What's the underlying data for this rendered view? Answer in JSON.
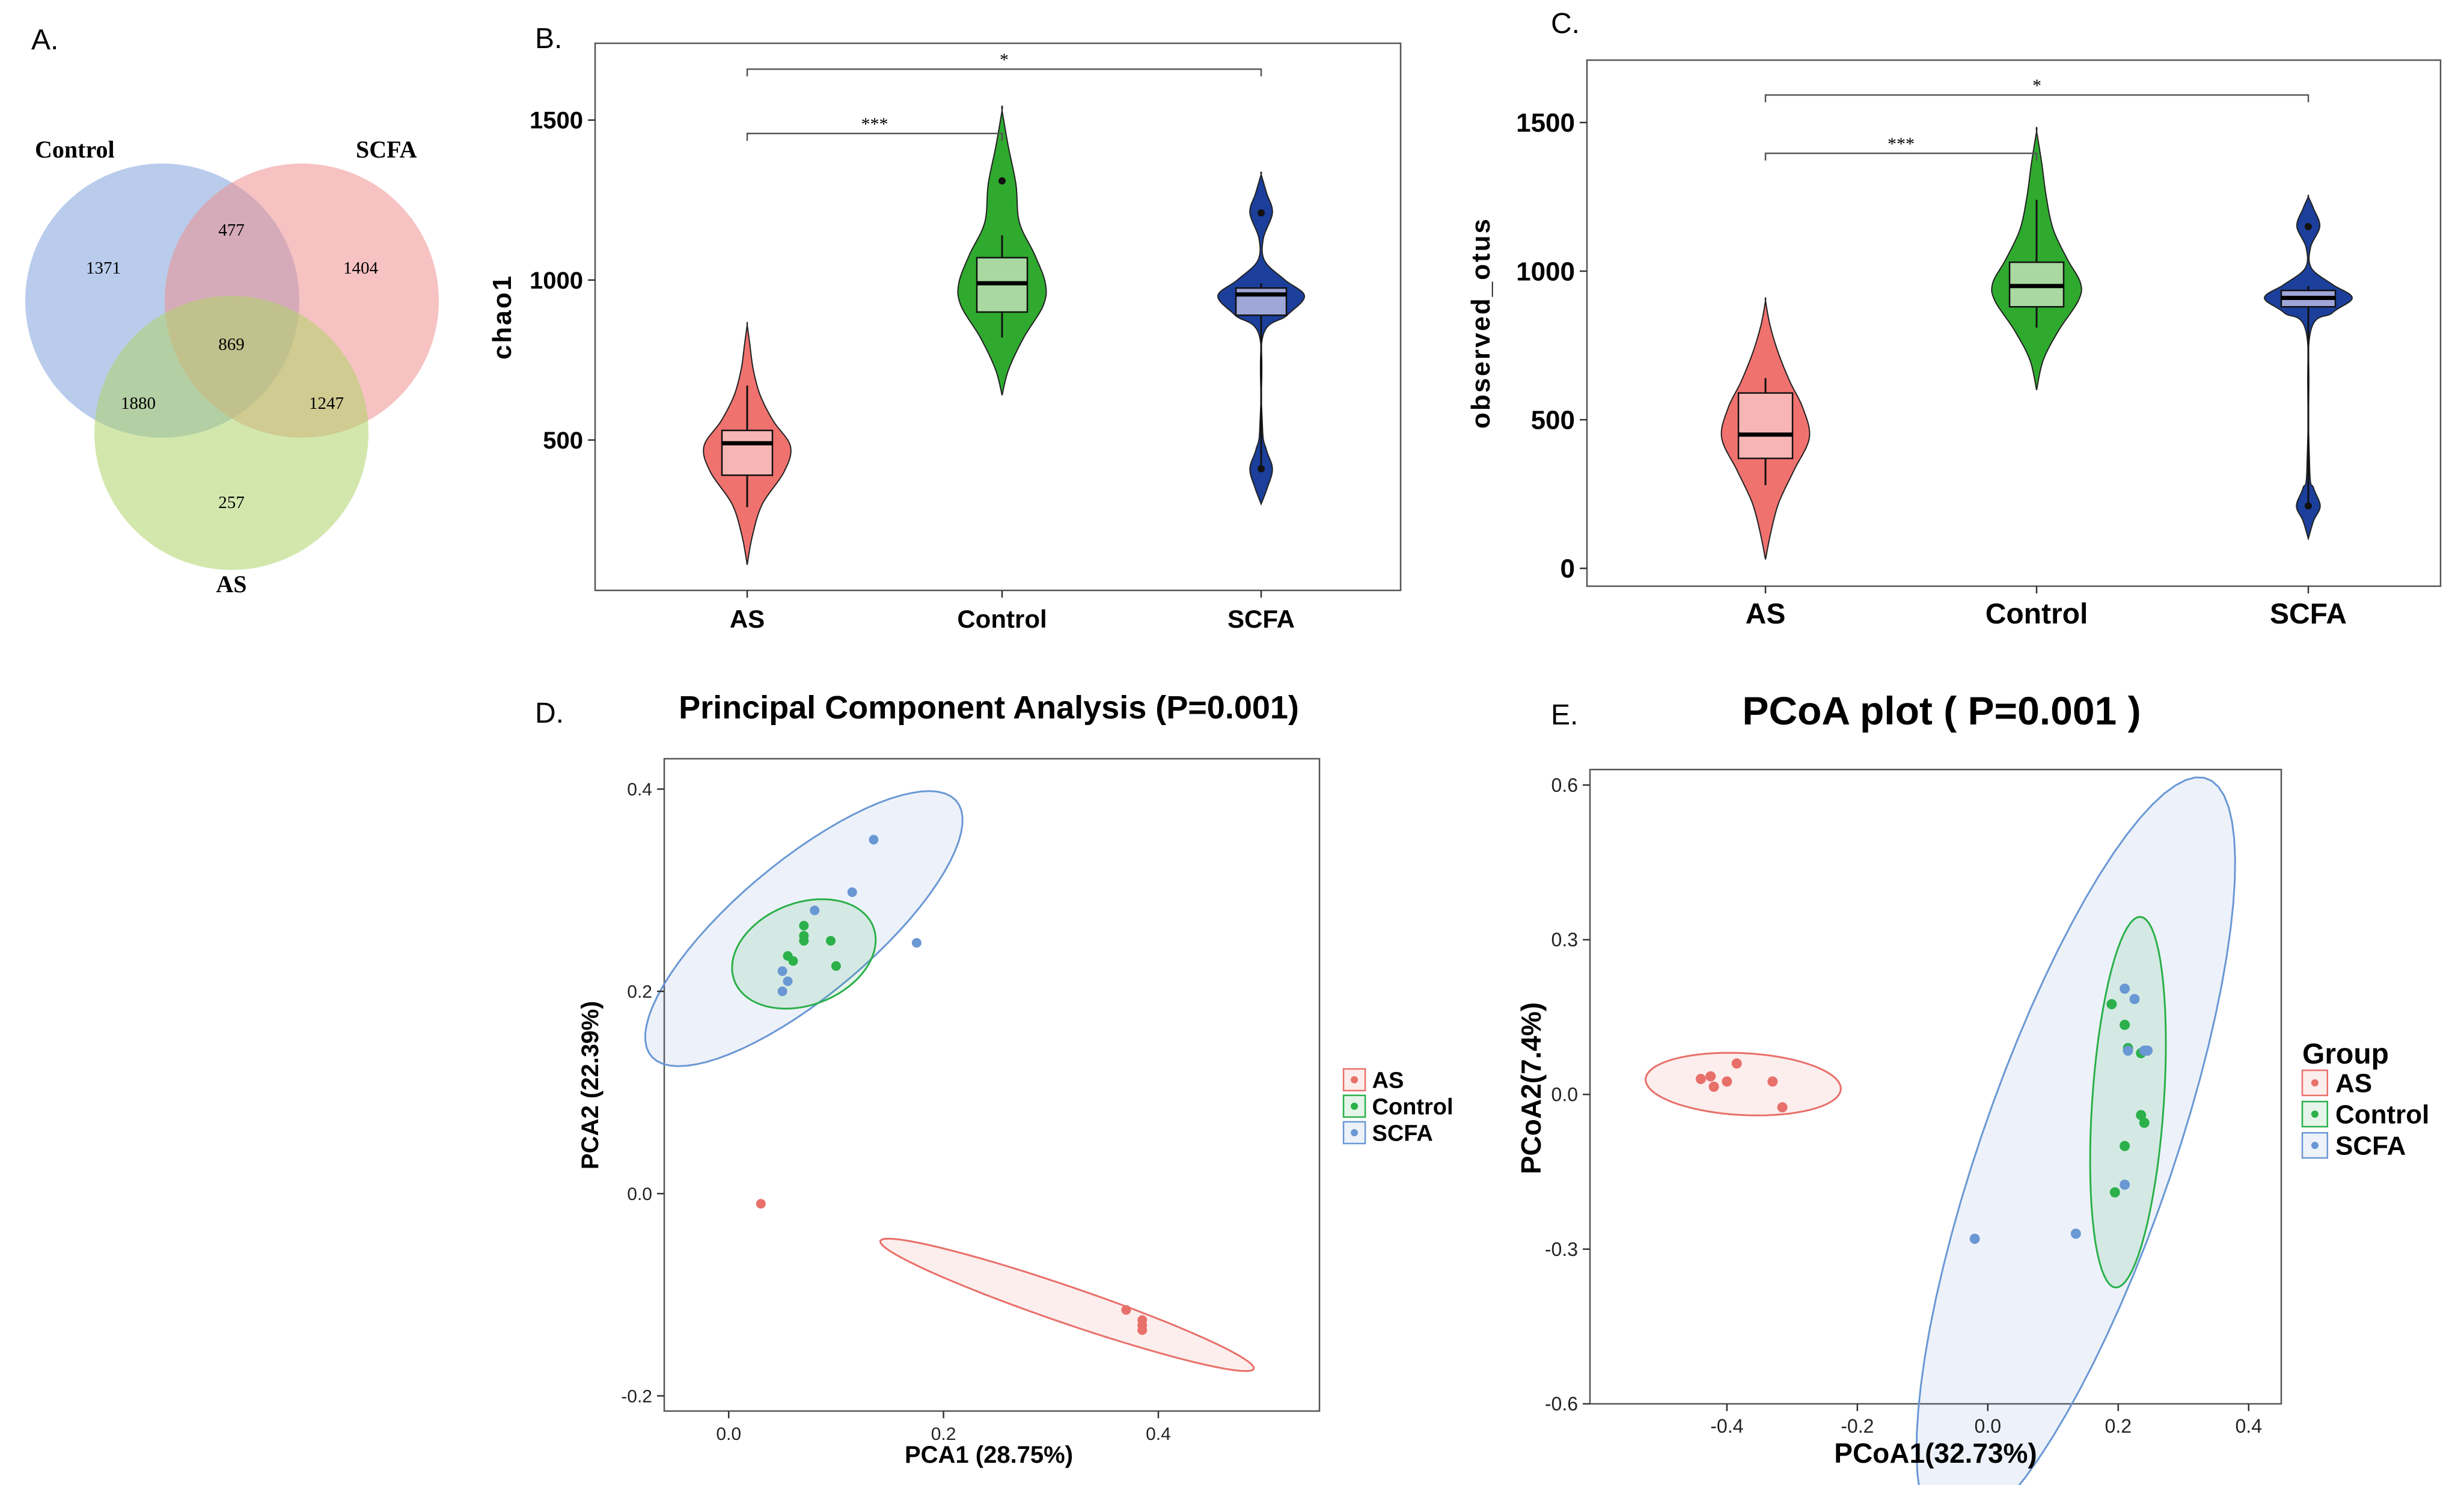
{
  "figure": {
    "panel_labels": [
      "A.",
      "B.",
      "C.",
      "D.",
      "E."
    ]
  },
  "colors": {
    "as": "#F0726F",
    "control": "#2FAA2F",
    "scfa": "#1B3F9B",
    "as_light": "#F7B6B4",
    "control_light": "#A9D9A0",
    "scfa_light": "#9FA6D8",
    "pc_as": "#E8706A",
    "pc_control": "#2BB04A",
    "pc_scfa": "#6A98D4",
    "venn_control": "#7FA3DC",
    "venn_scfa": "#EE9090",
    "venn_as": "#AFD36A"
  },
  "chart_data": [
    {
      "type": "venn",
      "panel": "A.",
      "sets": [
        "Control",
        "SCFA",
        "AS"
      ],
      "regions": [
        {
          "sets": [
            "Control"
          ],
          "value": "1371"
        },
        {
          "sets": [
            "SCFA"
          ],
          "value": "1404"
        },
        {
          "sets": [
            "AS"
          ],
          "value": "257"
        },
        {
          "sets": [
            "Control",
            "SCFA"
          ],
          "value": "477"
        },
        {
          "sets": [
            "Control",
            "AS"
          ],
          "value": "1880"
        },
        {
          "sets": [
            "SCFA",
            "AS"
          ],
          "value": "1247"
        },
        {
          "sets": [
            "Control",
            "SCFA",
            "AS"
          ],
          "value": "869"
        }
      ]
    },
    {
      "type": "violin",
      "panel": "B.",
      "ylabel": "chao1",
      "xlabel": "",
      "yticks": [
        500,
        1000,
        1500
      ],
      "ylim": [
        30,
        1740
      ],
      "categories": [
        "AS",
        "Control",
        "SCFA"
      ],
      "groups": [
        {
          "name": "AS",
          "min": 110,
          "max": 860,
          "q1": 390,
          "median": 490,
          "q3": 530,
          "whisker_low": 290,
          "whisker_high": 670,
          "outliers": [],
          "profile": [
            [
              110,
              0.0
            ],
            [
              200,
              0.12
            ],
            [
              300,
              0.35
            ],
            [
              400,
              0.85
            ],
            [
              480,
              1.0
            ],
            [
              560,
              0.6
            ],
            [
              640,
              0.3
            ],
            [
              720,
              0.14
            ],
            [
              800,
              0.06
            ],
            [
              860,
              0.0
            ]
          ]
        },
        {
          "name": "Control",
          "min": 640,
          "max": 1530,
          "q1": 900,
          "median": 990,
          "q3": 1070,
          "whisker_low": 820,
          "whisker_high": 1140,
          "outliers": [
            1310
          ],
          "profile": [
            [
              640,
              0.0
            ],
            [
              720,
              0.15
            ],
            [
              820,
              0.5
            ],
            [
              920,
              0.95
            ],
            [
              990,
              1.0
            ],
            [
              1080,
              0.75
            ],
            [
              1180,
              0.4
            ],
            [
              1300,
              0.32
            ],
            [
              1420,
              0.14
            ],
            [
              1530,
              0.0
            ]
          ]
        },
        {
          "name": "SCFA",
          "min": 300,
          "max": 1330,
          "q1": 890,
          "median": 955,
          "q3": 975,
          "whisker_low": 410,
          "whisker_high": 990,
          "outliers": [
            410,
            1210
          ],
          "profile": [
            [
              300,
              0.0
            ],
            [
              350,
              0.14
            ],
            [
              410,
              0.26
            ],
            [
              470,
              0.12
            ],
            [
              540,
              0.03
            ],
            [
              820,
              0.03
            ],
            [
              890,
              0.6
            ],
            [
              950,
              1.0
            ],
            [
              1000,
              0.55
            ],
            [
              1060,
              0.08
            ],
            [
              1130,
              0.05
            ],
            [
              1210,
              0.26
            ],
            [
              1270,
              0.13
            ],
            [
              1330,
              0.0
            ]
          ]
        }
      ],
      "significance": [
        {
          "from": "AS",
          "to": "Control",
          "label": "***"
        },
        {
          "from": "AS",
          "to": "SCFA",
          "label": "*"
        }
      ]
    },
    {
      "type": "violin",
      "panel": "C.",
      "ylabel": "observed_otus",
      "xlabel": "",
      "yticks": [
        0,
        500,
        1000,
        1500
      ],
      "ylim": [
        -60,
        1710
      ],
      "categories": [
        "AS",
        "Control",
        "SCFA"
      ],
      "groups": [
        {
          "name": "AS",
          "min": 30,
          "max": 900,
          "q1": 370,
          "median": 450,
          "q3": 590,
          "whisker_low": 280,
          "whisker_high": 640,
          "outliers": [],
          "profile": [
            [
              30,
              0.0
            ],
            [
              120,
              0.12
            ],
            [
              220,
              0.3
            ],
            [
              330,
              0.65
            ],
            [
              440,
              1.0
            ],
            [
              540,
              0.85
            ],
            [
              630,
              0.55
            ],
            [
              730,
              0.28
            ],
            [
              820,
              0.1
            ],
            [
              900,
              0.0
            ]
          ]
        },
        {
          "name": "Control",
          "min": 600,
          "max": 1470,
          "q1": 880,
          "median": 950,
          "q3": 1030,
          "whisker_low": 810,
          "whisker_high": 1240,
          "outliers": [],
          "profile": [
            [
              600,
              0.0
            ],
            [
              700,
              0.15
            ],
            [
              800,
              0.5
            ],
            [
              900,
              0.95
            ],
            [
              960,
              1.0
            ],
            [
              1040,
              0.7
            ],
            [
              1140,
              0.38
            ],
            [
              1250,
              0.22
            ],
            [
              1360,
              0.12
            ],
            [
              1470,
              0.0
            ]
          ]
        },
        {
          "name": "SCFA",
          "min": 100,
          "max": 1250,
          "q1": 880,
          "median": 910,
          "q3": 935,
          "whisker_low": 210,
          "whisker_high": 950,
          "outliers": [
            210,
            1150
          ],
          "profile": [
            [
              100,
              0.0
            ],
            [
              160,
              0.12
            ],
            [
              210,
              0.27
            ],
            [
              270,
              0.12
            ],
            [
              340,
              0.03
            ],
            [
              780,
              0.03
            ],
            [
              860,
              0.55
            ],
            [
              910,
              1.0
            ],
            [
              955,
              0.55
            ],
            [
              1010,
              0.07
            ],
            [
              1080,
              0.05
            ],
            [
              1150,
              0.26
            ],
            [
              1210,
              0.12
            ],
            [
              1250,
              0.0
            ]
          ]
        }
      ],
      "significance": [
        {
          "from": "AS",
          "to": "Control",
          "label": "***"
        },
        {
          "from": "AS",
          "to": "SCFA",
          "label": "*"
        }
      ]
    },
    {
      "type": "scatter",
      "panel": "D.",
      "title": "Principal Component Analysis (P=0.001)",
      "xlabel": "PCA1 (28.75%)",
      "ylabel": "PCA2 (22.39%)",
      "xlim": [
        -0.06,
        0.55
      ],
      "ylim": [
        -0.215,
        0.43
      ],
      "xticks": [
        0.0,
        0.2,
        0.4
      ],
      "yticks": [
        -0.2,
        0.0,
        0.2,
        0.4
      ],
      "legend": {
        "title": "",
        "entries": [
          "AS",
          "Control",
          "SCFA"
        ],
        "placement": "right"
      },
      "series": [
        {
          "name": "AS",
          "points": [
            [
              0.03,
              -0.01
            ],
            [
              0.37,
              -0.115
            ],
            [
              0.385,
              -0.125
            ],
            [
              0.385,
              -0.13
            ],
            [
              0.385,
              -0.135
            ]
          ],
          "ellipse": {
            "center": [
              0.315,
              -0.11
            ],
            "axes": [
              0.185,
              0.018
            ],
            "angle_deg": -20.0
          }
        },
        {
          "name": "Control",
          "points": [
            [
              0.07,
              0.265
            ],
            [
              0.07,
              0.255
            ],
            [
              0.095,
              0.25
            ],
            [
              0.055,
              0.235
            ],
            [
              0.06,
              0.23
            ],
            [
              0.1,
              0.225
            ],
            [
              0.07,
              0.25
            ]
          ],
          "ellipse": {
            "center": [
              0.07,
              0.237
            ],
            "axes": [
              0.07,
              0.05
            ],
            "angle_deg": 25.0
          }
        },
        {
          "name": "SCFA",
          "points": [
            [
              0.135,
              0.35
            ],
            [
              0.115,
              0.298
            ],
            [
              0.08,
              0.28
            ],
            [
              0.175,
              0.248
            ],
            [
              0.05,
              0.22
            ],
            [
              0.055,
              0.21
            ],
            [
              0.05,
              0.2
            ]
          ],
          "ellipse": {
            "center": [
              0.07,
              0.262
            ],
            "axes": [
              0.19,
              0.065
            ],
            "angle_deg": 42.0
          }
        }
      ]
    },
    {
      "type": "scatter",
      "panel": "E.",
      "title": "PCoA plot ( P=0.001 )",
      "xlabel": "PCoA1(32.73%)",
      "ylabel": "PCoA2(7.4%)",
      "xlim": [
        -0.61,
        0.45
      ],
      "ylim": [
        -0.6,
        0.63
      ],
      "xticks": [
        -0.4,
        -0.2,
        0.0,
        0.2,
        0.4
      ],
      "yticks": [
        -0.6,
        -0.3,
        0.0,
        0.3,
        0.6
      ],
      "legend": {
        "title": "Group",
        "entries": [
          "AS",
          "Control",
          "SCFA"
        ],
        "placement": "right"
      },
      "series": [
        {
          "name": "AS",
          "points": [
            [
              -0.44,
              0.03
            ],
            [
              -0.425,
              0.035
            ],
            [
              -0.42,
              0.015
            ],
            [
              -0.4,
              0.025
            ],
            [
              -0.385,
              0.06
            ],
            [
              -0.33,
              0.025
            ],
            [
              -0.315,
              -0.025
            ]
          ],
          "ellipse": {
            "center": [
              -0.375,
              0.02
            ],
            "axes": [
              0.15,
              0.06
            ],
            "angle_deg": -4.0
          }
        },
        {
          "name": "Control",
          "points": [
            [
              0.19,
              0.175
            ],
            [
              0.21,
              0.135
            ],
            [
              0.215,
              0.09
            ],
            [
              0.235,
              0.08
            ],
            [
              0.235,
              -0.04
            ],
            [
              0.24,
              -0.055
            ],
            [
              0.21,
              -0.1
            ],
            [
              0.195,
              -0.19
            ]
          ],
          "ellipse": {
            "center": [
              0.215,
              -0.015
            ],
            "axes": [
              0.36,
              0.055
            ],
            "angle_deg": 87.0
          }
        },
        {
          "name": "SCFA",
          "points": [
            [
              0.21,
              0.205
            ],
            [
              0.225,
              0.185
            ],
            [
              0.215,
              0.085
            ],
            [
              0.245,
              0.085
            ],
            [
              0.24,
              0.085
            ],
            [
              0.21,
              -0.175
            ],
            [
              0.135,
              -0.27
            ],
            [
              -0.02,
              -0.28
            ]
          ],
          "ellipse": {
            "center": [
              0.135,
              -0.12
            ],
            "axes": [
              0.76,
              0.15
            ],
            "angle_deg": 75.0
          }
        }
      ]
    }
  ]
}
